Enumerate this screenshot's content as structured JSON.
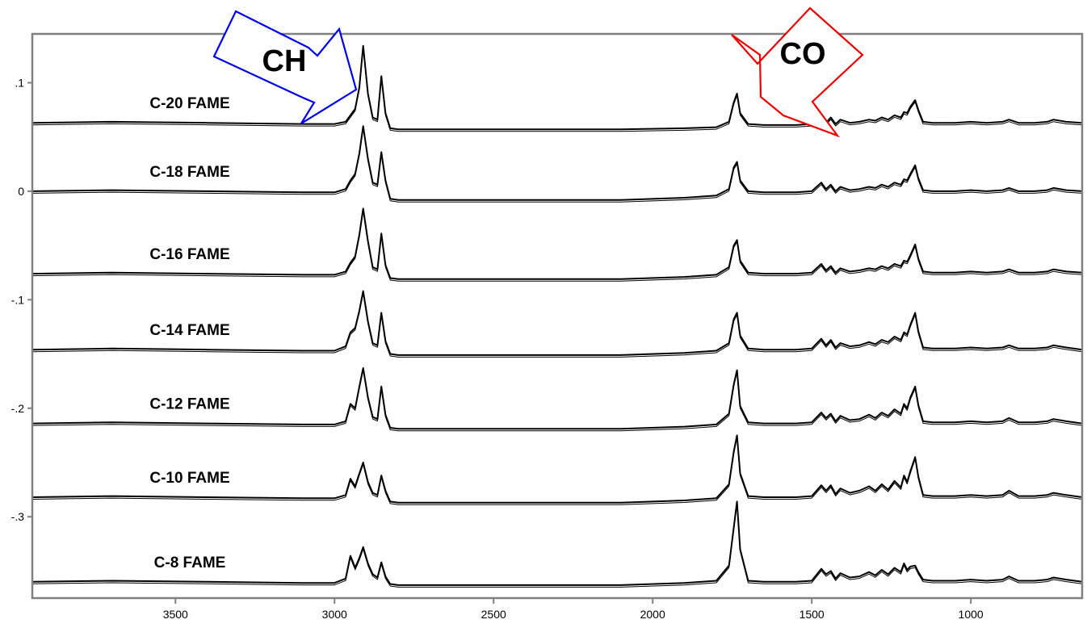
{
  "chart_data": {
    "type": "line",
    "title": "",
    "xlabel": "",
    "ylabel": "",
    "x_reversed": true,
    "xlim": [
      3950,
      650
    ],
    "ylim": [
      -0.375,
      0.145
    ],
    "xticks": [
      3500,
      3000,
      2500,
      2000,
      1500,
      1000
    ],
    "xtick_labels": [
      "3500",
      "3000",
      "2500",
      "2000",
      "1500",
      "1000"
    ],
    "yticks": [
      0.1,
      0,
      -0.1,
      -0.2,
      -0.3
    ],
    "ytick_labels": [
      ".1",
      "0",
      "-.1",
      "-.2",
      "-.3"
    ],
    "grid": false,
    "legend": "none",
    "line_color": "#000000",
    "x": [
      3950,
      3700,
      3400,
      3100,
      3000,
      2965,
      2950,
      2935,
      2922,
      2910,
      2895,
      2880,
      2865,
      2853,
      2840,
      2825,
      2800,
      2700,
      2500,
      2300,
      2100,
      1900,
      1800,
      1760,
      1745,
      1735,
      1725,
      1700,
      1650,
      1600,
      1550,
      1500,
      1470,
      1455,
      1440,
      1425,
      1410,
      1380,
      1350,
      1320,
      1300,
      1280,
      1260,
      1240,
      1220,
      1210,
      1200,
      1190,
      1175,
      1165,
      1150,
      1120,
      1100,
      1050,
      1000,
      950,
      900,
      880,
      850,
      800,
      760,
      740,
      700,
      650
    ],
    "series": [
      {
        "name": "C-20  FAME",
        "values": [
          0.063,
          0.064,
          0.063,
          0.062,
          0.062,
          0.064,
          0.07,
          0.076,
          0.096,
          0.134,
          0.09,
          0.068,
          0.066,
          0.106,
          0.072,
          0.058,
          0.057,
          0.057,
          0.057,
          0.057,
          0.057,
          0.058,
          0.059,
          0.064,
          0.082,
          0.09,
          0.072,
          0.062,
          0.061,
          0.061,
          0.061,
          0.062,
          0.069,
          0.063,
          0.068,
          0.062,
          0.066,
          0.063,
          0.064,
          0.066,
          0.065,
          0.068,
          0.066,
          0.07,
          0.068,
          0.073,
          0.072,
          0.078,
          0.084,
          0.075,
          0.064,
          0.063,
          0.063,
          0.063,
          0.064,
          0.063,
          0.064,
          0.066,
          0.063,
          0.063,
          0.064,
          0.066,
          0.064,
          0.063
        ]
      },
      {
        "name": "C-18  FAME",
        "values": [
          0.0,
          0.001,
          0.0,
          -0.001,
          -0.001,
          0.002,
          0.01,
          0.016,
          0.035,
          0.06,
          0.03,
          0.008,
          0.006,
          0.036,
          0.01,
          -0.007,
          -0.008,
          -0.008,
          -0.008,
          -0.008,
          -0.008,
          -0.006,
          -0.004,
          0.002,
          0.022,
          0.027,
          0.01,
          0.0,
          -0.001,
          -0.001,
          -0.001,
          0.0,
          0.008,
          0.002,
          0.006,
          0.0,
          0.004,
          0.001,
          0.002,
          0.004,
          0.003,
          0.006,
          0.004,
          0.008,
          0.006,
          0.011,
          0.01,
          0.016,
          0.024,
          0.012,
          0.001,
          0.0,
          0.0,
          0.0,
          0.001,
          0.0,
          0.001,
          0.003,
          0.0,
          0.0,
          0.001,
          0.003,
          0.001,
          0.0
        ]
      },
      {
        "name": "C-16  FAME",
        "values": [
          -0.076,
          -0.075,
          -0.076,
          -0.077,
          -0.077,
          -0.074,
          -0.066,
          -0.06,
          -0.04,
          -0.016,
          -0.046,
          -0.07,
          -0.072,
          -0.039,
          -0.068,
          -0.08,
          -0.081,
          -0.081,
          -0.081,
          -0.081,
          -0.081,
          -0.079,
          -0.077,
          -0.07,
          -0.05,
          -0.045,
          -0.064,
          -0.075,
          -0.076,
          -0.076,
          -0.076,
          -0.075,
          -0.067,
          -0.073,
          -0.069,
          -0.075,
          -0.071,
          -0.074,
          -0.073,
          -0.071,
          -0.072,
          -0.069,
          -0.071,
          -0.067,
          -0.069,
          -0.064,
          -0.065,
          -0.059,
          -0.049,
          -0.062,
          -0.074,
          -0.075,
          -0.075,
          -0.075,
          -0.074,
          -0.075,
          -0.074,
          -0.072,
          -0.075,
          -0.075,
          -0.074,
          -0.072,
          -0.074,
          -0.075
        ]
      },
      {
        "name": "C-14  FAME",
        "values": [
          -0.146,
          -0.145,
          -0.146,
          -0.147,
          -0.147,
          -0.143,
          -0.13,
          -0.126,
          -0.11,
          -0.092,
          -0.12,
          -0.14,
          -0.142,
          -0.112,
          -0.138,
          -0.15,
          -0.151,
          -0.151,
          -0.151,
          -0.151,
          -0.151,
          -0.149,
          -0.147,
          -0.14,
          -0.118,
          -0.112,
          -0.133,
          -0.145,
          -0.146,
          -0.146,
          -0.146,
          -0.145,
          -0.136,
          -0.142,
          -0.137,
          -0.144,
          -0.14,
          -0.143,
          -0.142,
          -0.139,
          -0.141,
          -0.137,
          -0.139,
          -0.134,
          -0.137,
          -0.13,
          -0.132,
          -0.123,
          -0.112,
          -0.129,
          -0.144,
          -0.145,
          -0.145,
          -0.145,
          -0.144,
          -0.145,
          -0.144,
          -0.142,
          -0.145,
          -0.145,
          -0.144,
          -0.142,
          -0.144,
          -0.146
        ]
      },
      {
        "name": "C-12  FAME",
        "values": [
          -0.214,
          -0.213,
          -0.214,
          -0.215,
          -0.215,
          -0.212,
          -0.196,
          -0.2,
          -0.18,
          -0.163,
          -0.19,
          -0.208,
          -0.21,
          -0.18,
          -0.206,
          -0.218,
          -0.219,
          -0.219,
          -0.219,
          -0.219,
          -0.219,
          -0.217,
          -0.215,
          -0.205,
          -0.178,
          -0.165,
          -0.198,
          -0.213,
          -0.214,
          -0.214,
          -0.214,
          -0.213,
          -0.204,
          -0.209,
          -0.205,
          -0.212,
          -0.207,
          -0.211,
          -0.21,
          -0.206,
          -0.209,
          -0.204,
          -0.207,
          -0.201,
          -0.205,
          -0.196,
          -0.2,
          -0.19,
          -0.18,
          -0.197,
          -0.212,
          -0.213,
          -0.213,
          -0.213,
          -0.212,
          -0.213,
          -0.212,
          -0.209,
          -0.213,
          -0.213,
          -0.212,
          -0.21,
          -0.212,
          -0.214
        ]
      },
      {
        "name": "C-10  FAME",
        "values": [
          -0.282,
          -0.281,
          -0.282,
          -0.283,
          -0.283,
          -0.28,
          -0.265,
          -0.272,
          -0.26,
          -0.25,
          -0.268,
          -0.278,
          -0.28,
          -0.262,
          -0.276,
          -0.286,
          -0.287,
          -0.287,
          -0.287,
          -0.287,
          -0.287,
          -0.285,
          -0.283,
          -0.27,
          -0.24,
          -0.225,
          -0.26,
          -0.281,
          -0.282,
          -0.282,
          -0.282,
          -0.281,
          -0.271,
          -0.276,
          -0.271,
          -0.279,
          -0.274,
          -0.278,
          -0.276,
          -0.272,
          -0.276,
          -0.27,
          -0.275,
          -0.267,
          -0.273,
          -0.262,
          -0.268,
          -0.258,
          -0.245,
          -0.263,
          -0.28,
          -0.281,
          -0.281,
          -0.281,
          -0.28,
          -0.281,
          -0.28,
          -0.276,
          -0.281,
          -0.281,
          -0.28,
          -0.278,
          -0.28,
          -0.282
        ]
      },
      {
        "name": "C-8  FAME",
        "values": [
          -0.36,
          -0.359,
          -0.36,
          -0.361,
          -0.361,
          -0.357,
          -0.336,
          -0.347,
          -0.338,
          -0.328,
          -0.343,
          -0.353,
          -0.356,
          -0.342,
          -0.355,
          -0.362,
          -0.363,
          -0.363,
          -0.363,
          -0.363,
          -0.363,
          -0.361,
          -0.359,
          -0.345,
          -0.31,
          -0.286,
          -0.33,
          -0.359,
          -0.36,
          -0.36,
          -0.36,
          -0.359,
          -0.348,
          -0.353,
          -0.35,
          -0.357,
          -0.352,
          -0.356,
          -0.355,
          -0.351,
          -0.354,
          -0.349,
          -0.353,
          -0.347,
          -0.351,
          -0.343,
          -0.349,
          -0.346,
          -0.345,
          -0.351,
          -0.358,
          -0.359,
          -0.359,
          -0.359,
          -0.358,
          -0.359,
          -0.358,
          -0.355,
          -0.359,
          -0.359,
          -0.358,
          -0.356,
          -0.358,
          -0.36
        ]
      }
    ],
    "annotations": [
      {
        "text": "CH",
        "color": "#0000ee"
      },
      {
        "text": "CO",
        "color": "#ee0000"
      }
    ]
  }
}
